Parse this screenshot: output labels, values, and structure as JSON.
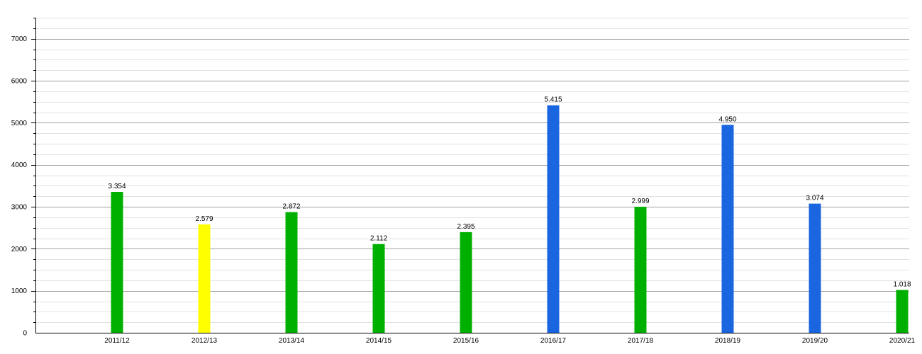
{
  "chart_data": {
    "type": "bar",
    "categories": [
      "2011/12",
      "2012/13",
      "2013/14",
      "2014/15",
      "2015/16",
      "2016/17",
      "2017/18",
      "2018/19",
      "2019/20",
      "2020/21"
    ],
    "values": [
      3354,
      2579,
      2872,
      2112,
      2395,
      5415,
      2999,
      4950,
      3074,
      1018
    ],
    "value_labels": [
      "3.354",
      "2.579",
      "2.872",
      "2.112",
      "2.395",
      "5.415",
      "2.999",
      "4.950",
      "3.074",
      "1.018"
    ],
    "bar_colors": [
      "#00b000",
      "#ffff00",
      "#00b000",
      "#00b000",
      "#00b000",
      "#1a66e0",
      "#00b000",
      "#1a66e0",
      "#1a66e0",
      "#00b000"
    ],
    "ylim": [
      0,
      7500
    ],
    "yticks": [
      0,
      1000,
      2000,
      3000,
      4000,
      5000,
      6000,
      7000
    ],
    "minor_tick_step": 250,
    "grid": true,
    "title": "",
    "xlabel": "",
    "ylabel": ""
  },
  "colors": {
    "major_grid": "#a0a0a0",
    "minor_grid": "#e2e2e2",
    "axis": "#000000"
  }
}
